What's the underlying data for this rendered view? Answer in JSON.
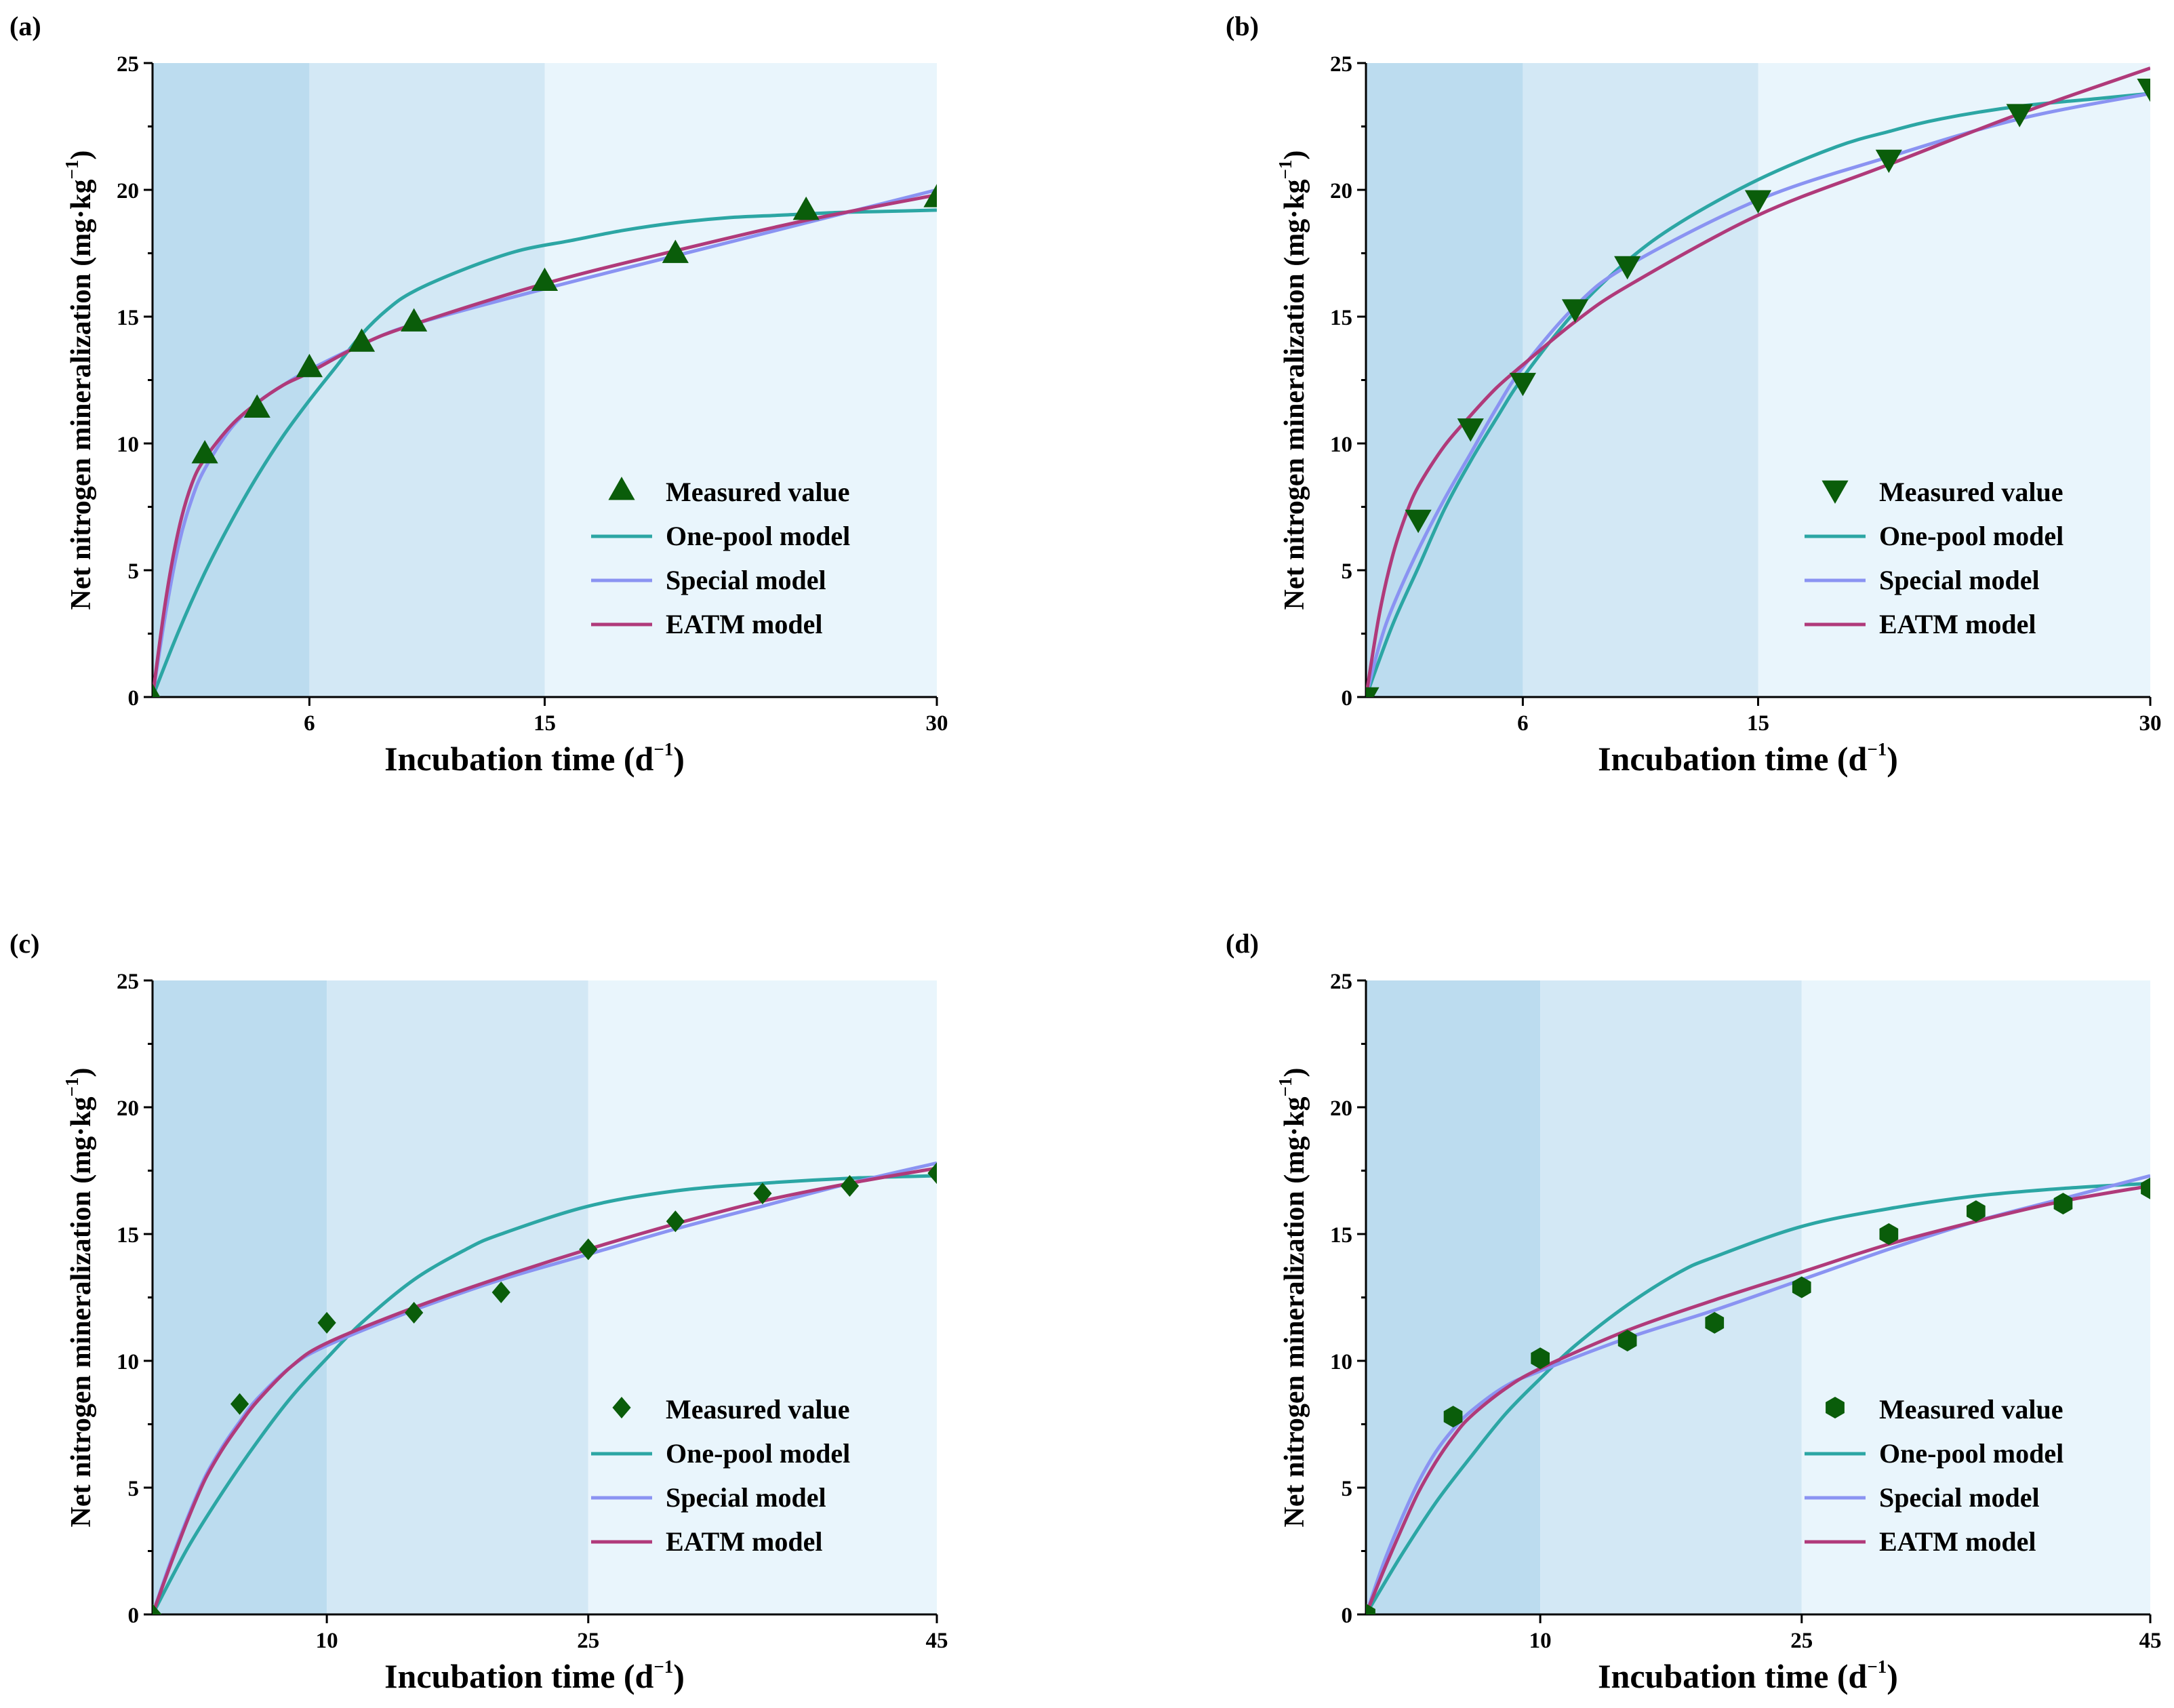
{
  "chart_data": [
    {
      "panel": "(a)",
      "type": "line",
      "xlabel": "Incubation time (d−1)",
      "xlabel_main": "Incubation time (d",
      "xlabel_sup": "−1",
      "xlabel_end": ")",
      "ylabel": "Net nitrogen mineralization (mg·kg−1)",
      "ylabel_main": "Net nitrogen mineralization (mg·kg",
      "ylabel_sup": "−1",
      "ylabel_end": ")",
      "xlim": [
        0,
        30
      ],
      "ylim": [
        0,
        25
      ],
      "xticks": [
        6,
        15,
        30
      ],
      "yticks": [
        0,
        5,
        10,
        15,
        20,
        25
      ],
      "regions": [
        {
          "from": 0,
          "to": 6,
          "color": "#bcdcef"
        },
        {
          "from": 6,
          "to": 15,
          "color": "#d3e8f5"
        },
        {
          "from": 15,
          "to": 30,
          "color": "#e9f5fc"
        }
      ],
      "legend_placement": "center-right",
      "measured": {
        "name": "Measured value",
        "marker": "triangle-up",
        "color": "#0a5d0a",
        "x": [
          0,
          2,
          4,
          6,
          8,
          10,
          15,
          20,
          25,
          30
        ],
        "y": [
          0,
          9.6,
          11.4,
          13.0,
          14.0,
          14.8,
          16.4,
          17.5,
          19.2,
          19.7
        ]
      },
      "series": [
        {
          "name": "One-pool model",
          "color": "#2ca6a4",
          "x": [
            0,
            1,
            2,
            3,
            4,
            5,
            6,
            7,
            8,
            9,
            10,
            12,
            14,
            16,
            18,
            20,
            22,
            24,
            26,
            28,
            30
          ],
          "y": [
            0,
            2.6,
            4.9,
            6.9,
            8.7,
            10.3,
            11.7,
            13.0,
            14.3,
            15.3,
            16.0,
            16.9,
            17.6,
            18.0,
            18.4,
            18.7,
            18.9,
            19.0,
            19.1,
            19.15,
            19.2
          ]
        },
        {
          "name": "Special model",
          "color": "#8a93f2",
          "x": [
            0,
            0.5,
            1,
            1.5,
            2,
            3,
            4,
            5,
            6,
            8,
            10,
            15,
            20,
            25,
            30
          ],
          "y": [
            0,
            3.3,
            6.0,
            7.8,
            9.0,
            10.6,
            11.6,
            12.3,
            12.9,
            13.9,
            14.7,
            16.1,
            17.4,
            18.7,
            20.0
          ]
        },
        {
          "name": "EATM model",
          "color": "#b03a7a",
          "x": [
            0,
            0.5,
            1,
            1.5,
            2,
            3,
            4,
            5,
            6,
            8,
            10,
            15,
            20,
            25,
            30
          ],
          "y": [
            0,
            3.8,
            6.6,
            8.4,
            9.4,
            10.7,
            11.6,
            12.3,
            12.8,
            13.9,
            14.7,
            16.3,
            17.6,
            18.8,
            19.8
          ]
        }
      ]
    },
    {
      "panel": "(b)",
      "type": "line",
      "xlabel": "Incubation time (d−1)",
      "xlabel_main": "Incubation time (d",
      "xlabel_sup": "−1",
      "xlabel_end": ")",
      "ylabel": "Net nitrogen mineralization (mg·kg−1)",
      "ylabel_main": "Net nitrogen mineralization (mg·kg",
      "ylabel_sup": "−1",
      "ylabel_end": ")",
      "xlim": [
        0,
        30
      ],
      "ylim": [
        0,
        25
      ],
      "xticks": [
        6,
        15,
        30
      ],
      "yticks": [
        0,
        5,
        10,
        15,
        20,
        25
      ],
      "regions": [
        {
          "from": 0,
          "to": 6,
          "color": "#bcdcef"
        },
        {
          "from": 6,
          "to": 15,
          "color": "#d3e8f5"
        },
        {
          "from": 15,
          "to": 30,
          "color": "#e9f5fc"
        }
      ],
      "legend_placement": "center-right",
      "measured": {
        "name": "Measured value",
        "marker": "triangle-down",
        "color": "#0a5d0a",
        "x": [
          0,
          2,
          4,
          6,
          8,
          10,
          15,
          20,
          25,
          30
        ],
        "y": [
          0,
          7.0,
          10.6,
          12.4,
          15.3,
          17.0,
          19.6,
          21.2,
          23.0,
          24.0
        ]
      },
      "series": [
        {
          "name": "One-pool model",
          "color": "#2ca6a4",
          "x": [
            0,
            1,
            2,
            3,
            4,
            5,
            6,
            8,
            10,
            12,
            15,
            18,
            20,
            22,
            25,
            28,
            30
          ],
          "y": [
            0,
            2.8,
            5.1,
            7.4,
            9.3,
            11.0,
            12.6,
            15.2,
            17.2,
            18.7,
            20.4,
            21.7,
            22.3,
            22.8,
            23.3,
            23.6,
            23.8
          ]
        },
        {
          "name": "Special model",
          "color": "#8a93f2",
          "x": [
            0,
            0.5,
            1,
            2,
            3,
            4,
            5,
            6,
            8,
            10,
            15,
            20,
            25,
            30
          ],
          "y": [
            0,
            2.0,
            3.5,
            5.8,
            7.8,
            9.6,
            11.4,
            13.0,
            15.4,
            17.0,
            19.6,
            21.3,
            22.8,
            23.8
          ]
        },
        {
          "name": "EATM model",
          "color": "#b03a7a",
          "x": [
            0,
            0.5,
            1,
            1.5,
            2,
            3,
            4,
            5,
            6,
            8,
            10,
            15,
            20,
            25,
            30
          ],
          "y": [
            0,
            3.2,
            5.5,
            7.1,
            8.3,
            9.9,
            11.1,
            12.2,
            13.1,
            14.8,
            16.2,
            19.0,
            21.0,
            23.0,
            24.8
          ]
        }
      ]
    },
    {
      "panel": "(c)",
      "type": "line",
      "xlabel": "Incubation time (d−1)",
      "xlabel_main": "Incubation time (d",
      "xlabel_sup": "−1",
      "xlabel_end": ")",
      "ylabel": "Net nitrogen mineralization (mg·kg−1)",
      "ylabel_main": "Net nitrogen mineralization (mg·kg",
      "ylabel_sup": "−1",
      "ylabel_end": ")",
      "xlim": [
        0,
        45
      ],
      "ylim": [
        0,
        25
      ],
      "xticks": [
        10,
        25,
        45
      ],
      "yticks": [
        0,
        5,
        10,
        15,
        20,
        25
      ],
      "regions": [
        {
          "from": 0,
          "to": 10,
          "color": "#bcdcef"
        },
        {
          "from": 10,
          "to": 25,
          "color": "#d3e8f5"
        },
        {
          "from": 25,
          "to": 45,
          "color": "#e9f5fc"
        }
      ],
      "legend_placement": "bottom-right",
      "measured": {
        "name": "Measured value",
        "marker": "diamond",
        "color": "#0a5d0a",
        "x": [
          0,
          5,
          10,
          15,
          20,
          25,
          30,
          35,
          40,
          45
        ],
        "y": [
          0,
          8.3,
          11.5,
          11.9,
          12.7,
          14.4,
          15.5,
          16.6,
          16.9,
          17.4
        ]
      },
      "series": [
        {
          "name": "One-pool model",
          "color": "#2ca6a4",
          "x": [
            0,
            2,
            4,
            6,
            8,
            10,
            12,
            15,
            18,
            20,
            25,
            30,
            35,
            40,
            45
          ],
          "y": [
            0,
            2.6,
            4.8,
            6.8,
            8.6,
            10.1,
            11.5,
            13.2,
            14.4,
            15.0,
            16.1,
            16.7,
            17.0,
            17.2,
            17.3
          ]
        },
        {
          "name": "Special model",
          "color": "#8a93f2",
          "x": [
            0,
            1,
            2,
            3,
            4,
            5,
            6,
            8,
            10,
            15,
            20,
            25,
            30,
            35,
            40,
            45
          ],
          "y": [
            0,
            2.0,
            3.8,
            5.4,
            6.6,
            7.6,
            8.5,
            9.8,
            10.6,
            12.0,
            13.2,
            14.2,
            15.2,
            16.1,
            17.0,
            17.8
          ]
        },
        {
          "name": "EATM model",
          "color": "#b03a7a",
          "x": [
            0,
            1,
            2,
            3,
            4,
            5,
            6,
            8,
            10,
            15,
            20,
            25,
            30,
            35,
            40,
            45
          ],
          "y": [
            0,
            1.9,
            3.7,
            5.3,
            6.5,
            7.5,
            8.4,
            9.8,
            10.7,
            12.1,
            13.3,
            14.4,
            15.4,
            16.3,
            17.0,
            17.6
          ]
        }
      ]
    },
    {
      "panel": "(d)",
      "type": "line",
      "xlabel": "Incubation time (d−1)",
      "xlabel_main": "Incubation time (d",
      "xlabel_sup": "−1",
      "xlabel_end": ")",
      "ylabel": "Net nitrogen mineralization (mg·kg−1)",
      "ylabel_main": "Net nitrogen mineralization (mg·kg",
      "ylabel_sup": "−1",
      "ylabel_end": ")",
      "xlim": [
        0,
        45
      ],
      "ylim": [
        0,
        25
      ],
      "xticks": [
        10,
        25,
        45
      ],
      "yticks": [
        0,
        5,
        10,
        15,
        20,
        25
      ],
      "regions": [
        {
          "from": 0,
          "to": 10,
          "color": "#bcdcef"
        },
        {
          "from": 10,
          "to": 25,
          "color": "#d3e8f5"
        },
        {
          "from": 25,
          "to": 45,
          "color": "#e9f5fc"
        }
      ],
      "legend_placement": "bottom-right",
      "measured": {
        "name": "Measured value",
        "marker": "hexagon",
        "color": "#0a5d0a",
        "x": [
          0,
          5,
          10,
          15,
          20,
          25,
          30,
          35,
          40,
          45
        ],
        "y": [
          0,
          7.8,
          10.1,
          10.8,
          11.5,
          12.9,
          15.0,
          15.9,
          16.2,
          16.8
        ]
      },
      "series": [
        {
          "name": "One-pool model",
          "color": "#2ca6a4",
          "x": [
            0,
            2,
            4,
            6,
            8,
            10,
            12,
            15,
            18,
            20,
            25,
            30,
            35,
            40,
            45
          ],
          "y": [
            0,
            2.3,
            4.4,
            6.2,
            7.9,
            9.3,
            10.6,
            12.2,
            13.5,
            14.1,
            15.3,
            16.0,
            16.5,
            16.8,
            17.0
          ]
        },
        {
          "name": "Special model",
          "color": "#8a93f2",
          "x": [
            0,
            1,
            2,
            3,
            4,
            5,
            6,
            8,
            10,
            15,
            20,
            25,
            30,
            35,
            40,
            45
          ],
          "y": [
            0,
            2.0,
            3.7,
            5.2,
            6.4,
            7.3,
            8.0,
            9.0,
            9.6,
            10.9,
            12.0,
            13.2,
            14.4,
            15.5,
            16.4,
            17.3
          ]
        },
        {
          "name": "EATM model",
          "color": "#b03a7a",
          "x": [
            0,
            1,
            2,
            3,
            4,
            5,
            6,
            8,
            10,
            15,
            20,
            25,
            30,
            35,
            40,
            45
          ],
          "y": [
            0,
            1.7,
            3.3,
            4.8,
            6.0,
            7.0,
            7.8,
            8.9,
            9.7,
            11.2,
            12.4,
            13.5,
            14.6,
            15.5,
            16.3,
            16.9
          ]
        }
      ]
    }
  ]
}
